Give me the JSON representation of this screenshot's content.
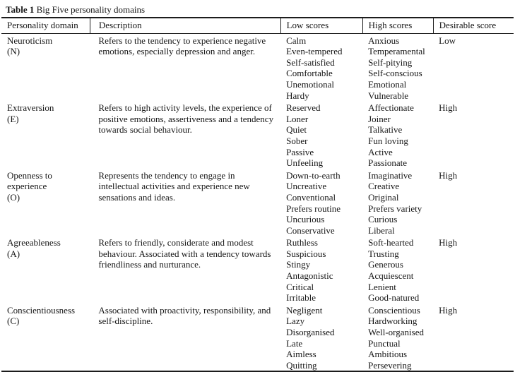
{
  "caption": {
    "label": "Table 1",
    "text": "Big Five personality domains"
  },
  "columns": [
    "Personality domain",
    "Description",
    "Low scores",
    "High scores",
    "Desirable score"
  ],
  "rows": [
    {
      "domain": "Neuroticism",
      "abbr": "(N)",
      "description": "Refers to the tendency to experience negative emotions, especially depression and anger.",
      "low_scores": [
        "Calm",
        "Even-tempered",
        "Self-satisfied",
        "Comfortable",
        "Unemotional",
        "Hardy"
      ],
      "high_scores": [
        "Anxious",
        "Temperamental",
        "Self-pitying",
        "Self-conscious",
        "Emotional",
        "Vulnerable"
      ],
      "desirable": "Low"
    },
    {
      "domain": "Extraversion",
      "abbr": "(E)",
      "description": "Refers to high activity levels, the experience of positive emotions, assertiveness and a tendency towards social behaviour.",
      "low_scores": [
        "Reserved",
        "Loner",
        "Quiet",
        "Sober",
        "Passive",
        "Unfeeling"
      ],
      "high_scores": [
        "Affectionate",
        "Joiner",
        "Talkative",
        "Fun loving",
        "Active",
        "Passionate"
      ],
      "desirable": "High"
    },
    {
      "domain": "Openness to experience",
      "abbr": "(O)",
      "description": "Represents the tendency to engage in intellectual activities and experience new sensations and ideas.",
      "low_scores": [
        "Down-to-earth",
        "Uncreative",
        "Conventional",
        "Prefers routine",
        "Uncurious",
        "Conservative"
      ],
      "high_scores": [
        "Imaginative",
        "Creative",
        "Original",
        "Prefers variety",
        "Curious",
        "Liberal"
      ],
      "desirable": "High"
    },
    {
      "domain": "Agreeableness",
      "abbr": "(A)",
      "description": "Refers to friendly, considerate and modest behaviour. Associated with a tendency towards friendliness and nurturance.",
      "low_scores": [
        "Ruthless",
        "Suspicious",
        "Stingy",
        "Antagonistic",
        "Critical",
        "Irritable"
      ],
      "high_scores": [
        "Soft-hearted",
        "Trusting",
        "Generous",
        "Acquiescent",
        "Lenient",
        "Good-natured"
      ],
      "desirable": "High"
    },
    {
      "domain": "Conscientiousness",
      "abbr": "(C)",
      "description": "Associated with proactivity, responsibility, and self-discipline.",
      "low_scores": [
        "Negligent",
        "Lazy",
        "Disorganised",
        "Late",
        "Aimless",
        "Quitting"
      ],
      "high_scores": [
        "Conscientious",
        "Hardworking",
        "Well-organised",
        "Punctual",
        "Ambitious",
        "Persevering"
      ],
      "desirable": "High"
    }
  ],
  "colors": {
    "background": "#ffffff",
    "text": "#161616",
    "rule": "#1c1c1c"
  }
}
